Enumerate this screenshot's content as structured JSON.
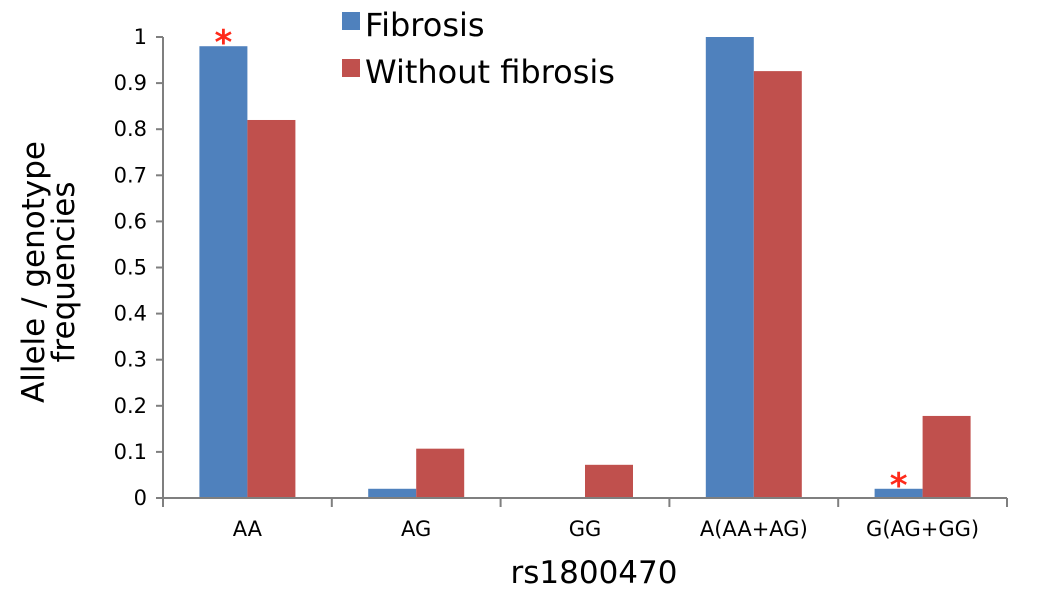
{
  "chart_data": {
    "type": "bar",
    "xlabel": "rs1800470",
    "ylabel": [
      "Allele / genotype",
      "frequencies"
    ],
    "categories": [
      "AA",
      "AG",
      "GG",
      "A(AA+AG)",
      "G(AG+GG)"
    ],
    "series": [
      {
        "name": "Fibrosis",
        "color": "#4f81bd",
        "values": [
          0.98,
          0.02,
          0.0,
          1.0,
          0.02
        ]
      },
      {
        "name": "Without fibrosis",
        "color": "#c0504d",
        "values": [
          0.82,
          0.107,
          0.072,
          0.926,
          0.178
        ]
      }
    ],
    "ylim": [
      0,
      1
    ],
    "yticks": [
      "0",
      "0.1",
      "0.2",
      "0.3",
      "0.4",
      "0.5",
      "0.6",
      "0.7",
      "0.8",
      "0.9",
      "1"
    ],
    "grid": false,
    "legend": "top-center",
    "annotations": [
      {
        "text": "*",
        "category": "AA",
        "series": "Fibrosis",
        "color": "#ff2a1a"
      },
      {
        "text": "*",
        "category": "G(AG+GG)",
        "series": "Fibrosis",
        "color": "#ff2a1a"
      }
    ]
  }
}
